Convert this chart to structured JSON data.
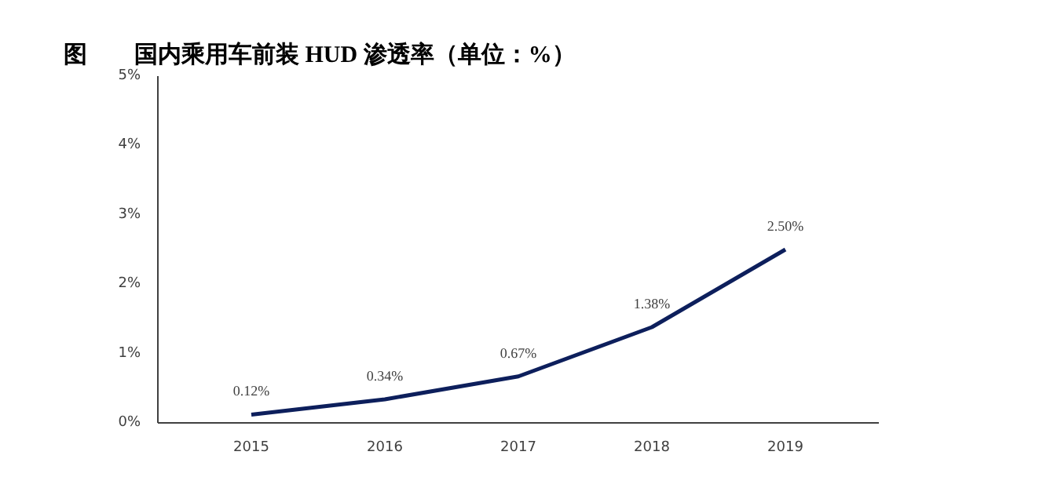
{
  "chart_data": {
    "type": "line",
    "title": "图　　国内乘用车前装 HUD 渗透率（单位：%）",
    "categories": [
      "2015",
      "2016",
      "2017",
      "2018",
      "2019"
    ],
    "series": [
      {
        "color": "#0d1f5c",
        "values": [
          0.12,
          0.34,
          0.67,
          1.38,
          2.5
        ]
      }
    ],
    "value_labels": [
      "0.12%",
      "0.34%",
      "0.67%",
      "1.38%",
      "2.50%"
    ],
    "ylim": [
      0,
      5
    ],
    "yticks": [
      {
        "value": 0,
        "label": "0%"
      },
      {
        "value": 1,
        "label": "1%"
      },
      {
        "value": 2,
        "label": "2%"
      },
      {
        "value": 3,
        "label": "3%"
      },
      {
        "value": 4,
        "label": "4%"
      },
      {
        "value": 5,
        "label": "5%"
      }
    ],
    "line_style": "solid"
  }
}
